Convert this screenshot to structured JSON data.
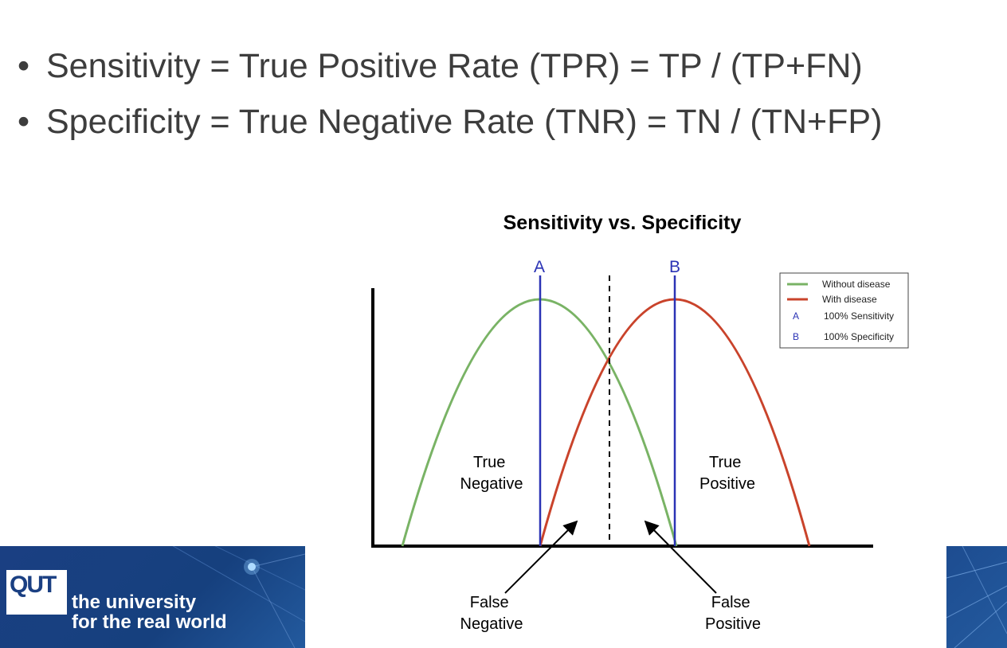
{
  "bullets": [
    "Sensitivity = True Positive Rate (TPR) = TP / (TP+FN)",
    "Specificity = True Negative Rate (TNR) = TN / (TN+FP)"
  ],
  "diagram": {
    "title": "Sensitivity vs. Specificity",
    "line_a_label": "A",
    "line_b_label": "B",
    "region_labels": {
      "true_negative": [
        "True",
        "Negative"
      ],
      "true_positive": [
        "True",
        "Positive"
      ],
      "false_negative": [
        "False",
        "Negative"
      ],
      "false_positive": [
        "False",
        "Positive"
      ]
    },
    "legend": [
      {
        "key": "line",
        "color": "#79b365",
        "label": "Without disease"
      },
      {
        "key": "line",
        "color": "#c9432b",
        "label": "With disease"
      },
      {
        "key": "A",
        "color": "#2b33b5",
        "label": "100% Sensitivity"
      },
      {
        "key": "B",
        "color": "#2b33b5",
        "label": "100% Specificity"
      }
    ],
    "colors": {
      "without_disease": "#79b365",
      "with_disease": "#c9432b",
      "threshold_lines": "#2b33b5",
      "axes": "#000000"
    }
  },
  "branding": {
    "logo_text": "QUT",
    "tagline": [
      "the university",
      "for the real world"
    ]
  }
}
